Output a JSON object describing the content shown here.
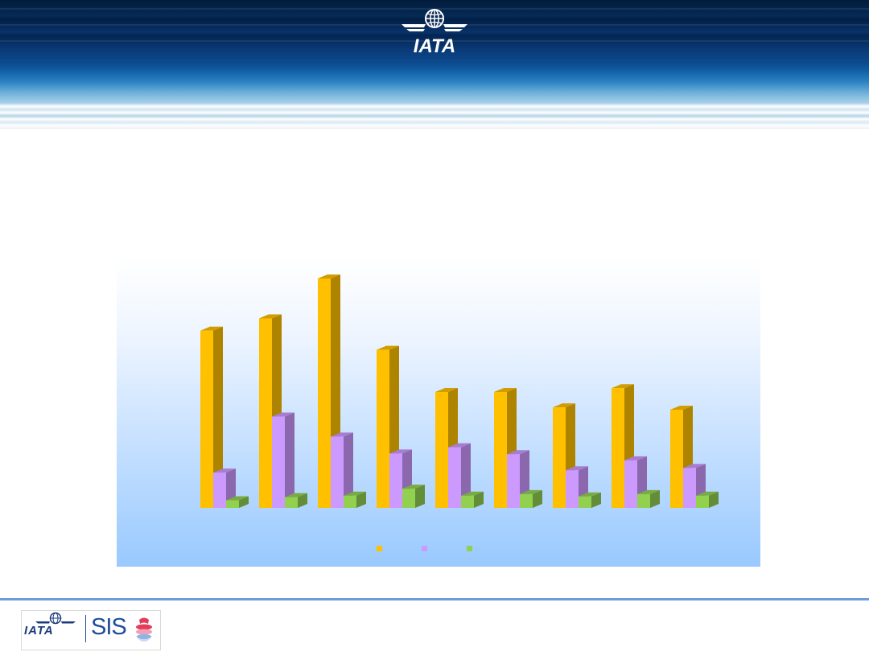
{
  "header": {
    "logo_text": "IATA",
    "logo_icon": "globe-wings-icon"
  },
  "footer": {
    "iata_text": "IATA",
    "sis_text": "SIS",
    "sis_icon": "sis-globe-icon"
  },
  "chart_data": {
    "type": "bar",
    "title": "",
    "xlabel": "",
    "ylabel": "",
    "categories": [
      "",
      "",
      "",
      "",
      "",
      "",
      "",
      "",
      ""
    ],
    "ylim": [
      0,
      300
    ],
    "grid": false,
    "legend_position": "bottom",
    "series": [
      {
        "name": "",
        "color": "#ffc000",
        "values": [
          231,
          247,
          299,
          206,
          151,
          151,
          131,
          156,
          128
        ]
      },
      {
        "name": "",
        "color": "#cc99ff",
        "values": [
          46,
          119,
          93,
          71,
          79,
          70,
          49,
          62,
          52
        ]
      },
      {
        "name": "",
        "color": "#92d050",
        "values": [
          10,
          14,
          16,
          25,
          16,
          18,
          15,
          18,
          16
        ]
      }
    ]
  }
}
